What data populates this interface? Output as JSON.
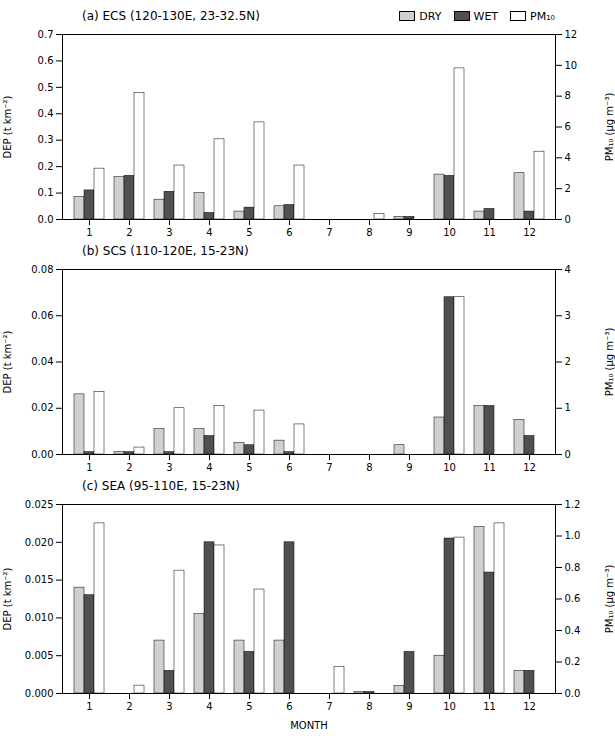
{
  "chart_data": [
    {
      "type": "bar",
      "title": "(a) ECS (120-130E, 23-32.5N)",
      "categories": [
        "1",
        "2",
        "3",
        "4",
        "5",
        "6",
        "7",
        "8",
        "9",
        "10",
        "11",
        "12"
      ],
      "series": [
        {
          "name": "DRY",
          "color": "#d0d0d0",
          "values": [
            0.085,
            0.16,
            0.075,
            0.1,
            0.03,
            0.05,
            0.0,
            0.0,
            0.01,
            0.17,
            0.03,
            0.175
          ]
        },
        {
          "name": "WET",
          "color": "#505050",
          "values": [
            0.11,
            0.165,
            0.105,
            0.025,
            0.045,
            0.055,
            0.0,
            0.0,
            0.01,
            0.165,
            0.04,
            0.03
          ]
        },
        {
          "name": "PM₁₀",
          "color": "white",
          "axis": "y2",
          "values": [
            3.3,
            8.2,
            3.5,
            5.2,
            6.3,
            3.5,
            0.0,
            0.35,
            0.0,
            9.8,
            0.0,
            4.4
          ]
        }
      ],
      "ylabel": "DEP (t km⁻²)",
      "y2label": "PM₁₀ (μg m⁻³)",
      "ylim": [
        0,
        0.7
      ],
      "yticks": [
        {
          "value": 0,
          "label": "0.0"
        },
        0.1,
        0.2,
        0.3,
        0.4,
        0.5,
        0.6,
        0.7
      ],
      "y2lim": [
        0,
        12
      ],
      "y2ticks": [
        0,
        2,
        4,
        6,
        8,
        10,
        12
      ],
      "legend": "upper right",
      "grid": false
    },
    {
      "type": "bar",
      "title": "(b) SCS (110-120E, 15-23N)",
      "categories": [
        "1",
        "2",
        "3",
        "4",
        "5",
        "6",
        "7",
        "8",
        "9",
        "10",
        "11",
        "12"
      ],
      "series": [
        {
          "name": "DRY",
          "color": "#d0d0d0",
          "values": [
            0.026,
            0.001,
            0.011,
            0.011,
            0.005,
            0.006,
            0.0,
            0.0,
            0.004,
            0.016,
            0.021,
            0.015
          ]
        },
        {
          "name": "WET",
          "color": "#505050",
          "values": [
            0.001,
            0.001,
            0.001,
            0.008,
            0.004,
            0.001,
            0.0,
            0.0,
            0.0,
            0.068,
            0.021,
            0.008
          ]
        },
        {
          "name": "PM₁₀",
          "color": "white",
          "axis": "y2",
          "values": [
            1.35,
            0.15,
            1.0,
            1.05,
            0.95,
            0.65,
            0.0,
            0.0,
            0.0,
            3.4,
            0.0,
            0.0
          ]
        }
      ],
      "ylabel": "DEP (t km⁻²)",
      "y2label": "PM₁₀ (μg m⁻³)",
      "ylim": [
        0,
        0.08
      ],
      "yticks": [
        {
          "value": 0,
          "label": "0.00"
        },
        {
          "value": 0.02,
          "label": "0.02"
        },
        {
          "value": 0.04,
          "label": "0.04"
        },
        {
          "value": 0.06,
          "label": "0.06"
        },
        {
          "value": 0.08,
          "label": "0.08"
        }
      ],
      "y2lim": [
        0,
        4
      ],
      "y2ticks": [
        0,
        1,
        2,
        3,
        4
      ],
      "grid": false
    },
    {
      "type": "bar",
      "title": "(c) SEA (95-110E, 15-23N)",
      "categories": [
        "1",
        "2",
        "3",
        "4",
        "5",
        "6",
        "7",
        "8",
        "9",
        "10",
        "11",
        "12"
      ],
      "series": [
        {
          "name": "DRY",
          "color": "#d0d0d0",
          "values": [
            0.014,
            0.0,
            0.007,
            0.0105,
            0.007,
            0.007,
            0.0,
            0.0002,
            0.001,
            0.005,
            0.022,
            0.003
          ]
        },
        {
          "name": "WET",
          "color": "#505050",
          "values": [
            0.013,
            0.0,
            0.003,
            0.02,
            0.0055,
            0.02,
            0.0,
            0.0002,
            0.0055,
            0.0205,
            0.016,
            0.003
          ]
        },
        {
          "name": "PM₁₀",
          "color": "white",
          "axis": "y2",
          "values": [
            1.08,
            0.05,
            0.78,
            0.94,
            0.66,
            0.0,
            0.17,
            0.0,
            0.0,
            0.99,
            1.08,
            0.0
          ]
        }
      ],
      "xlabel": "MONTH",
      "ylabel": "DEP (t km⁻²)",
      "y2label": "PM₁₀ (μg m⁻³)",
      "ylim": [
        0,
        0.025
      ],
      "yticks": [
        {
          "value": 0,
          "label": "0.000"
        },
        {
          "value": 0.005,
          "label": "0.005"
        },
        {
          "value": 0.01,
          "label": "0.010"
        },
        {
          "value": 0.015,
          "label": "0.015"
        },
        {
          "value": 0.02,
          "label": "0.020"
        },
        {
          "value": 0.025,
          "label": "0.025"
        }
      ],
      "y2lim": [
        0,
        1.2
      ],
      "y2ticks": [
        {
          "value": 0,
          "label": "0.0"
        },
        0.2,
        0.4,
        0.6,
        0.8,
        {
          "value": 1,
          "label": "1.0"
        },
        1.2
      ],
      "grid": false
    }
  ]
}
